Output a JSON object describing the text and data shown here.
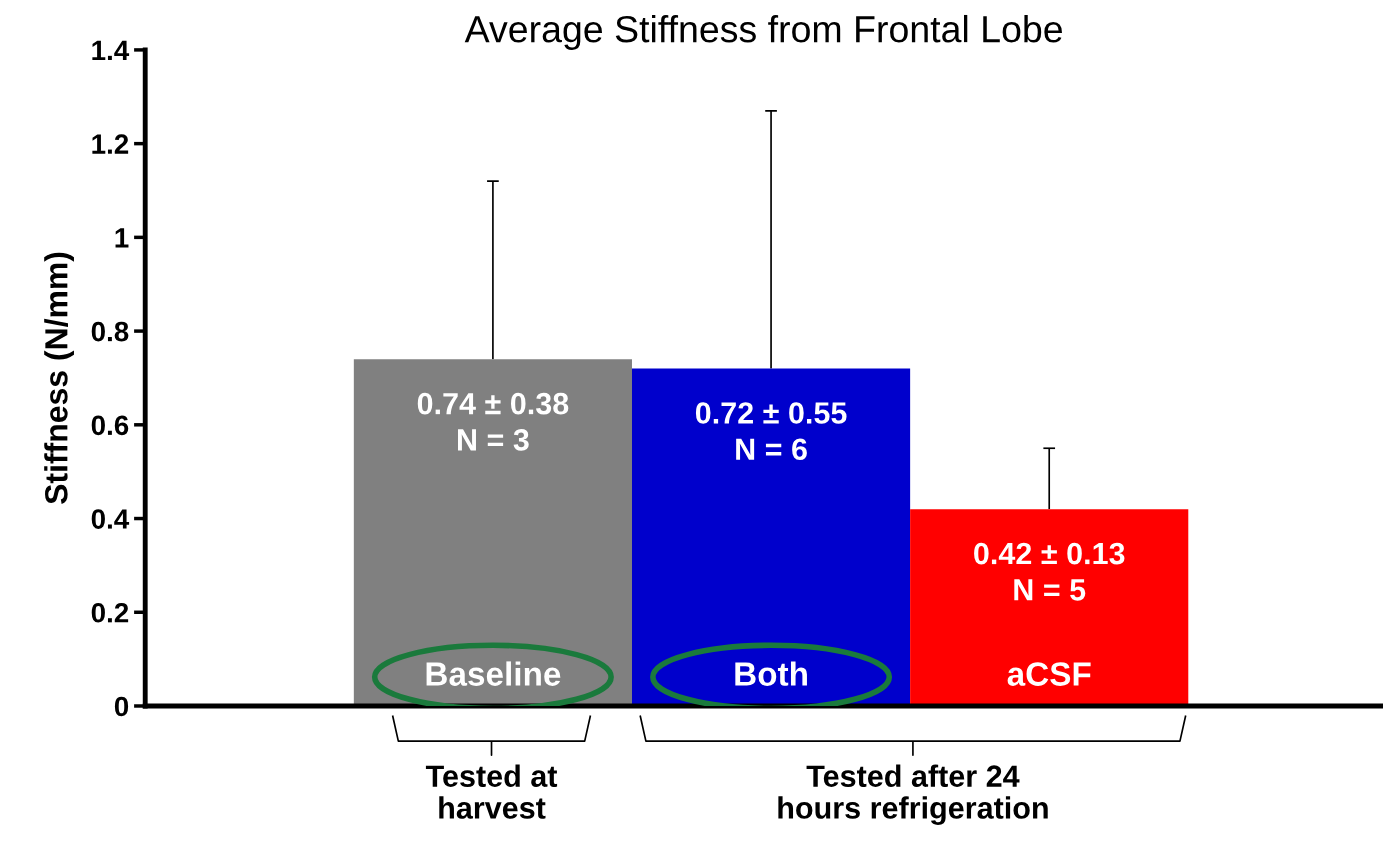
{
  "chart_data": {
    "type": "bar",
    "title": "Average Stiffness from Frontal Lobe",
    "ylabel": "Stiffness (N/mm)",
    "categories": [
      "Baseline",
      "Both",
      "aCSF"
    ],
    "values": [
      0.74,
      0.72,
      0.42
    ],
    "colors": [
      "#808080",
      "#0000cc",
      "#ff0000"
    ],
    "errors": [
      [
        0.74,
        1.12
      ],
      [
        0.72,
        1.27
      ],
      [
        0.42,
        0.55
      ]
    ],
    "value_labels": [
      "0.74 ± 0.38\nN = 3",
      "0.72 ± 0.55\nN = 6",
      "0.42 ± 0.13\nN = 5"
    ],
    "ylim": [
      0,
      1.4
    ],
    "yticks": [
      0,
      0.2,
      0.4,
      0.6,
      0.8,
      1,
      1.2,
      1.4
    ],
    "annotations": [
      "Tested at\nharvest",
      "Tested after 24\nhours refrigeration"
    ],
    "grid": false,
    "legend": false
  }
}
